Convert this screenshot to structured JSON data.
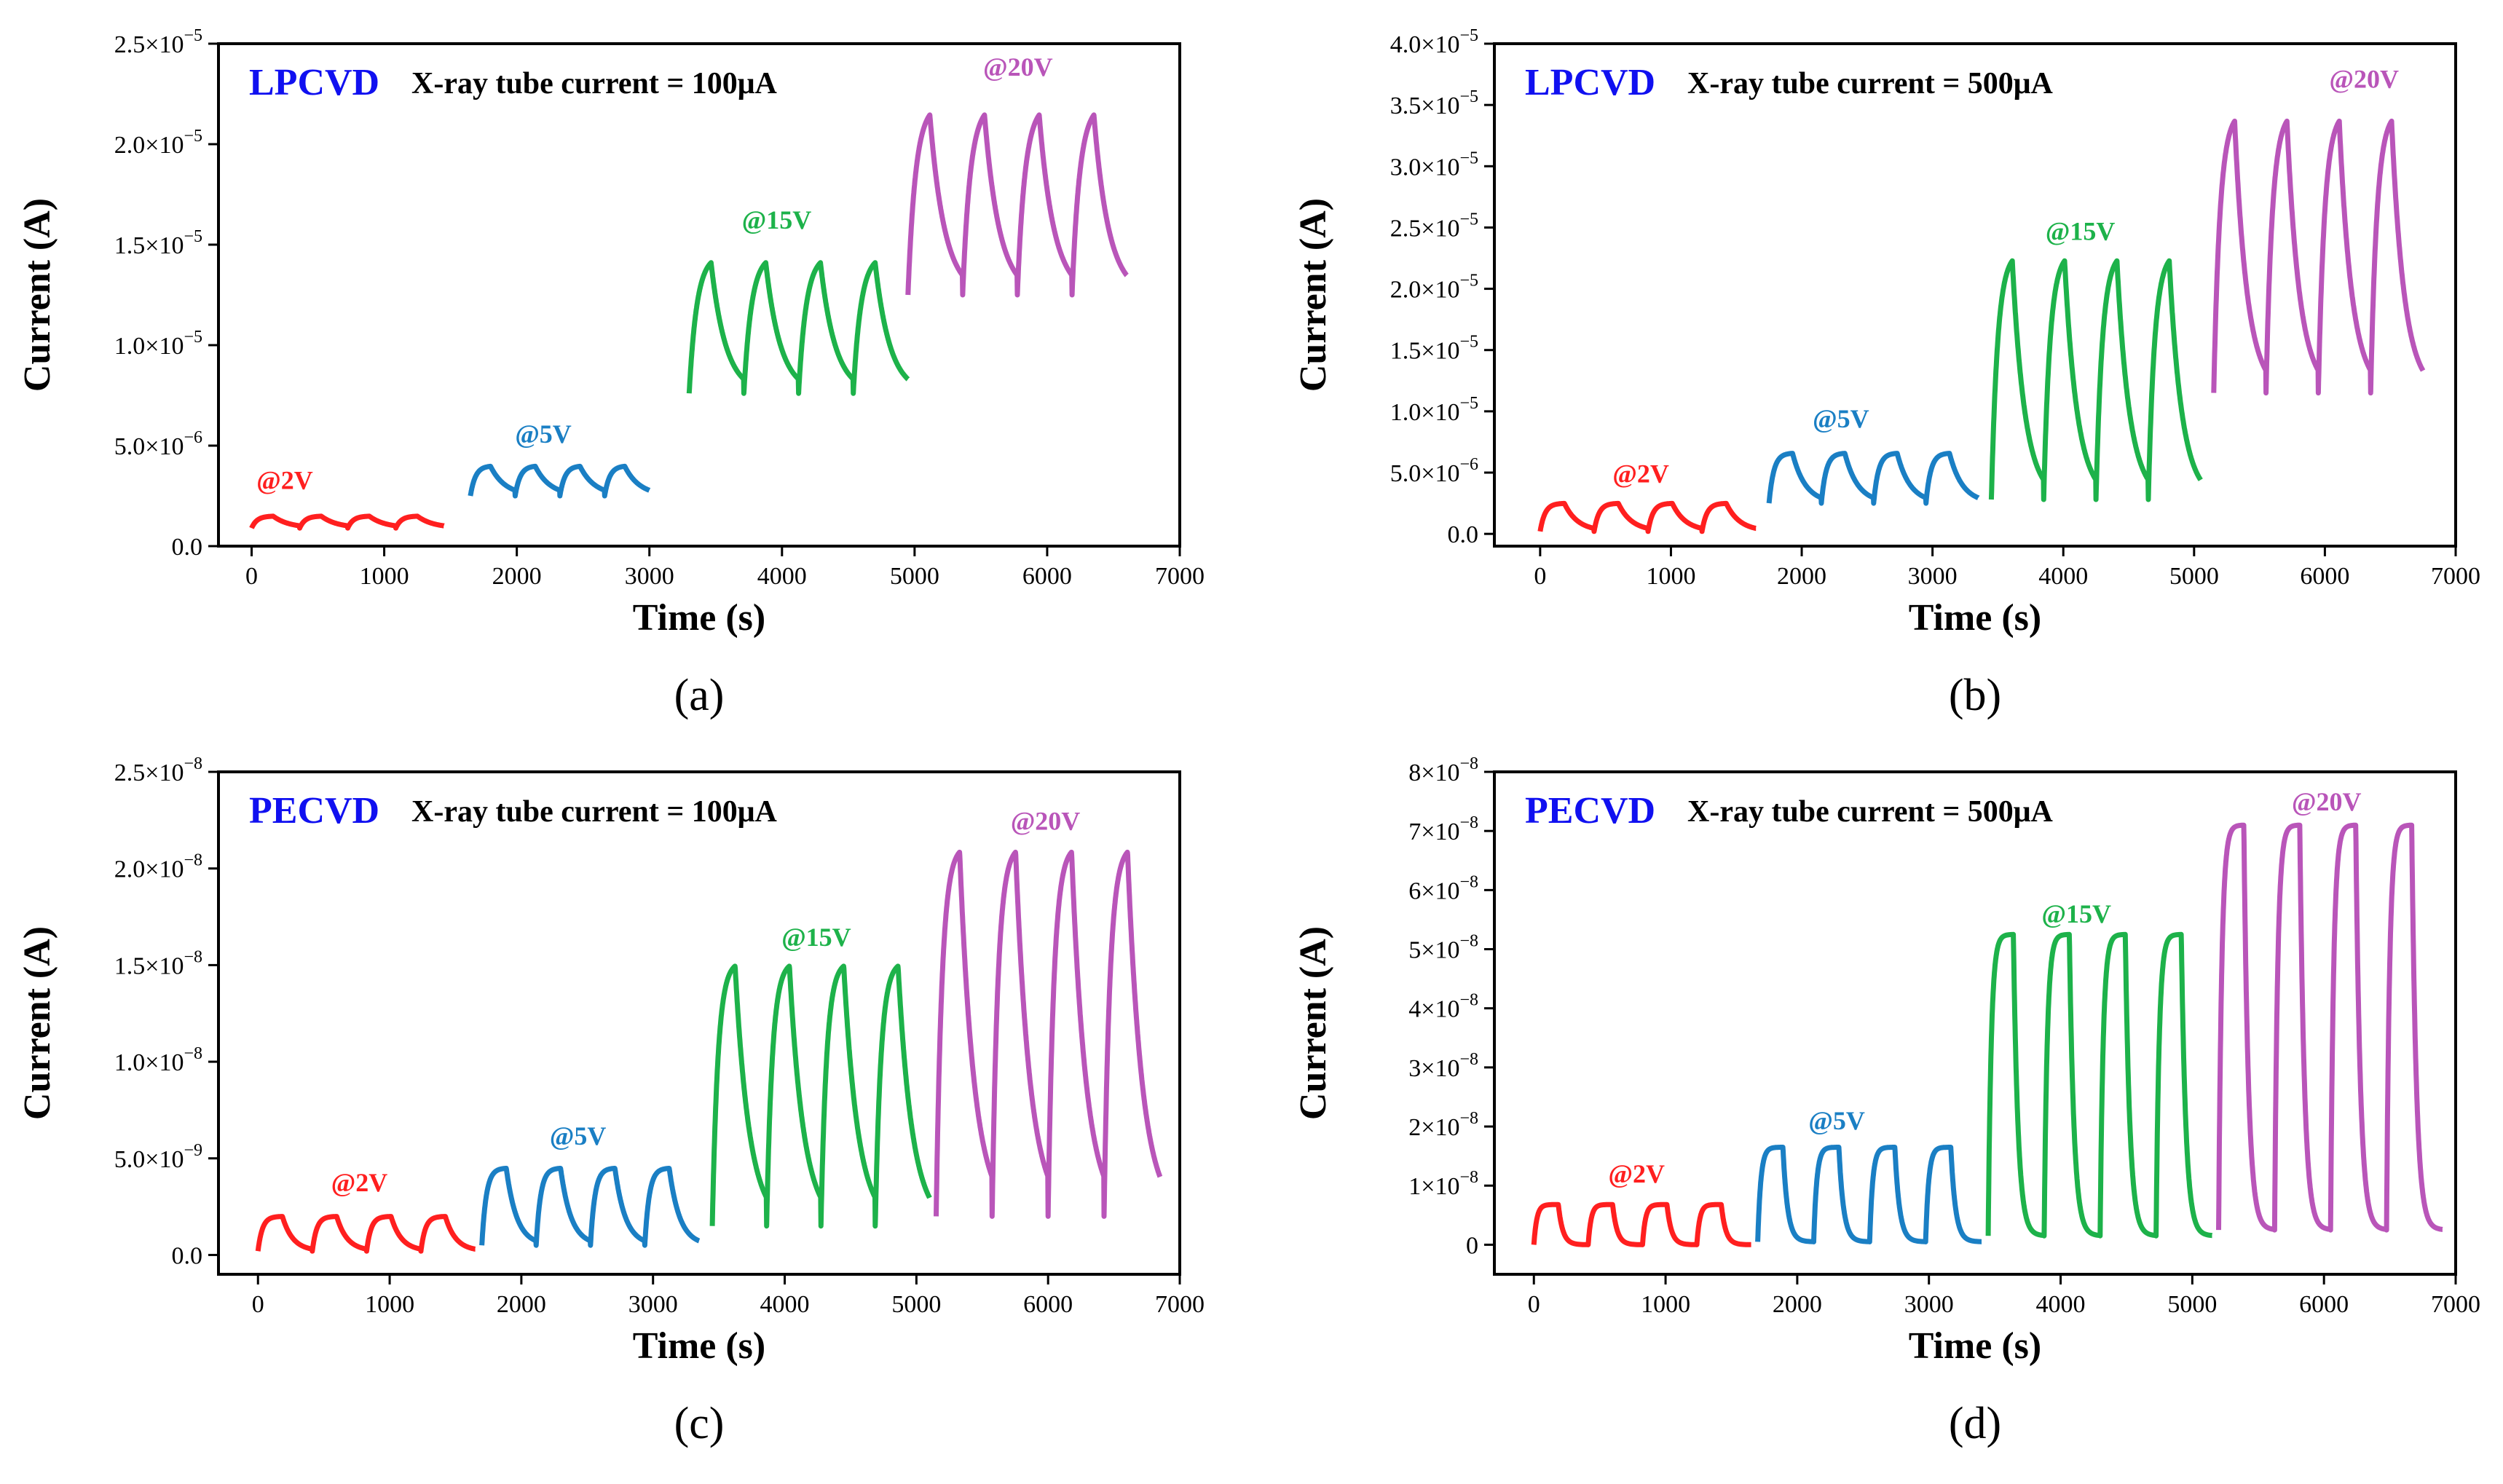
{
  "colors": {
    "2V": "#ff1f1f",
    "5V": "#1a7fc4",
    "15V": "#1db24a",
    "20V": "#b955b9",
    "method": "#1010f0"
  },
  "chart_data": [
    {
      "type": "line",
      "panel": "(a)",
      "method": "LPCVD",
      "condition": "X-ray tube current = 100μA",
      "xlabel": "Time (s)",
      "ylabel": "Current (A)",
      "xlim": [
        -250,
        7000
      ],
      "ylim": [
        0,
        2.5e-05
      ],
      "xticks": [
        0,
        1000,
        2000,
        3000,
        4000,
        5000,
        6000,
        7000
      ],
      "xtick_labels": [
        "0",
        "1000",
        "2000",
        "3000",
        "4000",
        "5000",
        "6000",
        "7000"
      ],
      "yticks": [
        0,
        5e-06,
        1e-05,
        1.5e-05,
        2e-05,
        2.5e-05
      ],
      "ytick_labels": [
        {
          "m": "0.0"
        },
        {
          "m": "5.0×10",
          "e": "−6"
        },
        {
          "m": "1.0×10",
          "e": "−5"
        },
        {
          "m": "1.5×10",
          "e": "−5"
        },
        {
          "m": "2.0×10",
          "e": "−5"
        },
        {
          "m": "2.5×10",
          "e": "−5"
        }
      ],
      "series": [
        {
          "name": "@2V",
          "bias": "2V",
          "t0": 0,
          "t1": 1450,
          "base": 9e-07,
          "high": 1.5e-06,
          "cycles": 4,
          "on": 0.45,
          "rise": 0.25,
          "decay": 0.6,
          "label_x": 250,
          "label_y": 2.85e-06
        },
        {
          "name": "@5V",
          "bias": "5V",
          "t0": 1650,
          "t1": 3000,
          "base": 2.5e-06,
          "high": 4e-06,
          "cycles": 4,
          "on": 0.45,
          "rise": 0.25,
          "decay": 0.6,
          "label_x": 2200,
          "label_y": 5.15e-06
        },
        {
          "name": "@15V",
          "bias": "15V",
          "t0": 3300,
          "t1": 4950,
          "base": 7.6e-06,
          "high": 1.45e-05,
          "cycles": 4,
          "on": 0.4,
          "rise": 0.35,
          "decay": 0.45,
          "label_x": 3960,
          "label_y": 1.58e-05
        },
        {
          "name": "@20V",
          "bias": "20V",
          "t0": 4950,
          "t1": 6600,
          "base": 1.25e-05,
          "high": 2.2e-05,
          "cycles": 4,
          "on": 0.4,
          "rise": 0.35,
          "decay": 0.45,
          "label_x": 5780,
          "label_y": 2.34e-05
        }
      ]
    },
    {
      "type": "line",
      "panel": "(b)",
      "method": "LPCVD",
      "condition": "X-ray tube current = 500μA",
      "xlabel": "Time (s)",
      "ylabel": "Current (A)",
      "xlim": [
        -350,
        7000
      ],
      "ylim": [
        -1e-06,
        4e-05
      ],
      "xticks": [
        0,
        1000,
        2000,
        3000,
        4000,
        5000,
        6000,
        7000
      ],
      "xtick_labels": [
        "0",
        "1000",
        "2000",
        "3000",
        "4000",
        "5000",
        "6000",
        "7000"
      ],
      "yticks": [
        0,
        5e-06,
        1e-05,
        1.5e-05,
        2e-05,
        2.5e-05,
        3e-05,
        3.5e-05,
        4e-05
      ],
      "ytick_labels": [
        {
          "m": "0.0"
        },
        {
          "m": "5.0×10",
          "e": "−6"
        },
        {
          "m": "1.0×10",
          "e": "−5"
        },
        {
          "m": "1.5×10",
          "e": "−5"
        },
        {
          "m": "2.0×10",
          "e": "−5"
        },
        {
          "m": "2.5×10",
          "e": "−5"
        },
        {
          "m": "3.0×10",
          "e": "−5"
        },
        {
          "m": "3.5×10",
          "e": "−5"
        },
        {
          "m": "4.0×10",
          "e": "−5"
        }
      ],
      "series": [
        {
          "name": "@2V",
          "bias": "2V",
          "t0": 0,
          "t1": 1650,
          "base": 2e-07,
          "high": 2.5e-06,
          "cycles": 4,
          "on": 0.45,
          "rise": 0.2,
          "decay": 0.45,
          "label_x": 770,
          "label_y": 4.2e-06
        },
        {
          "name": "@5V",
          "bias": "5V",
          "t0": 1750,
          "t1": 3350,
          "base": 2.5e-06,
          "high": 6.6e-06,
          "cycles": 4,
          "on": 0.45,
          "rise": 0.2,
          "decay": 0.45,
          "label_x": 2300,
          "label_y": 8.7e-06
        },
        {
          "name": "@15V",
          "bias": "15V",
          "t0": 3450,
          "t1": 5050,
          "base": 2.8e-06,
          "high": 2.3e-05,
          "cycles": 4,
          "on": 0.4,
          "rise": 0.3,
          "decay": 0.4,
          "label_x": 4130,
          "label_y": 2.4e-05
        },
        {
          "name": "@20V",
          "bias": "20V",
          "t0": 5150,
          "t1": 6750,
          "base": 1.15e-05,
          "high": 3.45e-05,
          "cycles": 4,
          "on": 0.4,
          "rise": 0.3,
          "decay": 0.4,
          "label_x": 6300,
          "label_y": 3.64e-05
        }
      ]
    },
    {
      "type": "line",
      "panel": "(c)",
      "method": "PECVD",
      "condition": "X-ray tube current = 100μA",
      "xlabel": "Time (s)",
      "ylabel": "Current (A)",
      "xlim": [
        -300,
        7000
      ],
      "ylim": [
        -1e-09,
        2.5e-08
      ],
      "xticks": [
        0,
        1000,
        2000,
        3000,
        4000,
        5000,
        6000,
        7000
      ],
      "xtick_labels": [
        "0",
        "1000",
        "2000",
        "3000",
        "4000",
        "5000",
        "6000",
        "7000"
      ],
      "yticks": [
        0,
        5e-09,
        1e-08,
        1.5e-08,
        2e-08,
        2.5e-08
      ],
      "ytick_labels": [
        {
          "m": "0.0"
        },
        {
          "m": "5.0×10",
          "e": "−9"
        },
        {
          "m": "1.0×10",
          "e": "−8"
        },
        {
          "m": "1.5×10",
          "e": "−8"
        },
        {
          "m": "2.0×10",
          "e": "−8"
        },
        {
          "m": "2.5×10",
          "e": "−8"
        }
      ],
      "series": [
        {
          "name": "@2V",
          "bias": "2V",
          "t0": 0,
          "t1": 1650,
          "base": 2e-10,
          "high": 2e-09,
          "cycles": 4,
          "on": 0.45,
          "rise": 0.18,
          "decay": 0.35,
          "label_x": 770,
          "label_y": 3.3e-09
        },
        {
          "name": "@5V",
          "bias": "5V",
          "t0": 1700,
          "t1": 3350,
          "base": 5e-10,
          "high": 4.5e-09,
          "cycles": 4,
          "on": 0.45,
          "rise": 0.18,
          "decay": 0.35,
          "label_x": 2430,
          "label_y": 5.7e-09
        },
        {
          "name": "@15V",
          "bias": "15V",
          "t0": 3450,
          "t1": 5100,
          "base": 1.5e-09,
          "high": 1.52e-08,
          "cycles": 4,
          "on": 0.42,
          "rise": 0.25,
          "decay": 0.45,
          "label_x": 4240,
          "label_y": 1.6e-08
        },
        {
          "name": "@20V",
          "bias": "20V",
          "t0": 5150,
          "t1": 6850,
          "base": 2e-09,
          "high": 2.12e-08,
          "cycles": 4,
          "on": 0.42,
          "rise": 0.25,
          "decay": 0.45,
          "label_x": 5980,
          "label_y": 2.2e-08
        }
      ]
    },
    {
      "type": "line",
      "panel": "(d)",
      "method": "PECVD",
      "condition": "X-ray tube current = 500μA",
      "xlabel": "Time (s)",
      "ylabel": "Current (A)",
      "xlim": [
        -300,
        7000
      ],
      "ylim": [
        -5e-09,
        8e-08
      ],
      "xticks": [
        0,
        1000,
        2000,
        3000,
        4000,
        5000,
        6000,
        7000
      ],
      "xtick_labels": [
        "0",
        "1000",
        "2000",
        "3000",
        "4000",
        "5000",
        "6000",
        "7000"
      ],
      "yticks": [
        0,
        1e-08,
        2e-08,
        3e-08,
        4e-08,
        5e-08,
        6e-08,
        7e-08,
        8e-08
      ],
      "ytick_labels": [
        {
          "m": "0"
        },
        {
          "m": "1×10",
          "e": "−8"
        },
        {
          "m": "2×10",
          "e": "−8"
        },
        {
          "m": "3×10",
          "e": "−8"
        },
        {
          "m": "4×10",
          "e": "−8"
        },
        {
          "m": "5×10",
          "e": "−8"
        },
        {
          "m": "6×10",
          "e": "−8"
        },
        {
          "m": "7×10",
          "e": "−8"
        },
        {
          "m": "8×10",
          "e": "−8"
        }
      ],
      "series": [
        {
          "name": "@2V",
          "bias": "2V",
          "t0": 0,
          "t1": 1650,
          "base": 0,
          "high": 6.8e-09,
          "cycles": 4,
          "on": 0.45,
          "rise": 0.12,
          "decay": 0.15,
          "label_x": 780,
          "label_y": 1.05e-08
        },
        {
          "name": "@5V",
          "bias": "5V",
          "t0": 1700,
          "t1": 3400,
          "base": 5e-10,
          "high": 1.65e-08,
          "cycles": 4,
          "on": 0.45,
          "rise": 0.12,
          "decay": 0.15,
          "label_x": 2300,
          "label_y": 1.95e-08
        },
        {
          "name": "@15V",
          "bias": "15V",
          "t0": 3450,
          "t1": 5150,
          "base": 1.5e-09,
          "high": 5.25e-08,
          "cycles": 4,
          "on": 0.45,
          "rise": 0.12,
          "decay": 0.15,
          "label_x": 4120,
          "label_y": 5.45e-08
        },
        {
          "name": "@20V",
          "bias": "20V",
          "t0": 5200,
          "t1": 6900,
          "base": 2.5e-09,
          "high": 7.1e-08,
          "cycles": 4,
          "on": 0.45,
          "rise": 0.12,
          "decay": 0.15,
          "label_x": 6020,
          "label_y": 7.35e-08
        }
      ]
    }
  ]
}
